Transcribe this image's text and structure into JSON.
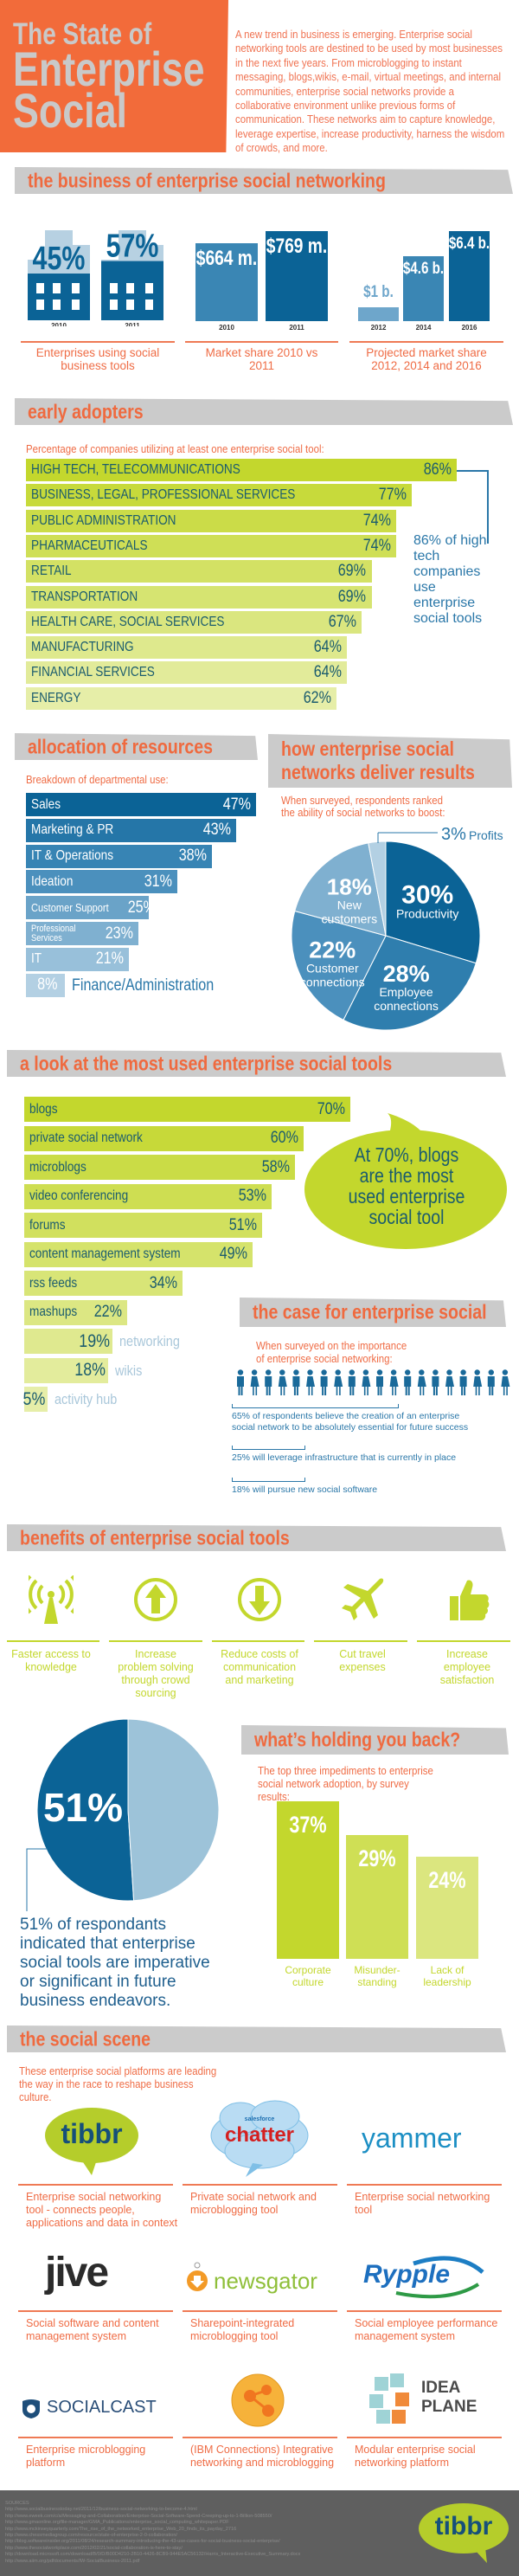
{
  "header": {
    "title_line1": "The State of",
    "title_line2": "Enterprise",
    "title_line3": "Social",
    "intro": "A new trend in business is emerging. Enterprise social networking tools are destined to be used by most businesses in the next five years. From microblogging to instant messaging, blogs,wikis, e-mail, virtual meetings, and internal communities, enterprise social networks provide a collaborative environment unlike previous forms of communication. These networks aim to capture knowledge, leverage expertise, increase productivity, harness the wisdom of crowds, and more."
  },
  "colors": {
    "accent_orange": "#f26b3a",
    "band_gray": "#cbcbcb",
    "dark_blue": "#0b6396",
    "mid_blue": "#3a86b4",
    "light_blue": "#9dc3d9",
    "green": "#c3d72d",
    "light_green": "#e6eea8",
    "footer_gray": "#5f5f5f"
  },
  "sections": {
    "business": {
      "title": "the business of enterprise social networking"
    },
    "early_adopters": {
      "title": "early adopters",
      "note": "86% of high tech companies use enterprise social tools"
    },
    "allocation": {
      "title": "allocation of resources"
    },
    "results": {
      "title": "how enterprise social networks deliver results"
    },
    "tools": {
      "title": "a look at the most used enterprise social tools",
      "callout": "At 70%, blogs are the most used enterprise social tool"
    },
    "case": {
      "title": "the case for enterprise social",
      "subtitle": "When surveyed on the importance of enterprise social networking:",
      "people_count": 20,
      "stats": [
        {
          "value": 65,
          "text": "65% of respondents believe the creation of an enterprise social network to be absolutely essential for future success"
        },
        {
          "value": 25,
          "text": "25% will leverage infrastructure that is currently in place"
        },
        {
          "value": 18,
          "text": "18% will pursue new social software"
        }
      ]
    },
    "benefits": {
      "title": "benefits of enterprise social tools",
      "items": [
        {
          "icon": "antenna-icon",
          "label": "Faster access to knowledge"
        },
        {
          "icon": "arrow-up-circle-icon",
          "label": "Increase problem solving through crowd sourcing"
        },
        {
          "icon": "arrow-down-circle-icon",
          "label": "Reduce costs of communication and marketing"
        },
        {
          "icon": "airplane-icon",
          "label": "Cut travel expenses"
        },
        {
          "icon": "thumbs-up-icon",
          "label": "Increase employee satisfaction"
        }
      ]
    },
    "imperative": {
      "text": "51% of respondants indicated that enterprise social tools are imperative or significant in future business endeavors."
    },
    "holding_back": {
      "title": "what’s holding you back?"
    },
    "social_scene": {
      "title": "the social scene",
      "subtitle": "These enterprise social platforms are leading the way in the race to reshape business culture.",
      "platforms": [
        {
          "logo": "tibbr",
          "description": "Enterprise social networking tool - connects people, applications and data in context"
        },
        {
          "logo": "chatter",
          "logo_sub": "salesforce",
          "description": "Private social network and microblogging tool"
        },
        {
          "logo": "yammer",
          "description": "Enterprise social networking tool"
        },
        {
          "logo": "jive",
          "description": "Social software and content management system"
        },
        {
          "logo": "newsgator",
          "description": "Sharepoint-integrated microblogging tool"
        },
        {
          "logo": "Rypple",
          "description": "Social employee performance management system"
        },
        {
          "logo": "SOCIALCAST",
          "description": "Enterprise microblogging platform"
        },
        {
          "logo": "IBM Connections",
          "description": "(IBM Connections) Integrative networking and microblogging"
        },
        {
          "logo": "IDEA PLANE",
          "description": "Modular enterprise social networking platform"
        }
      ]
    }
  },
  "sources": {
    "heading": "SOURCES",
    "urls": [
      "http://www.socialbusinesstoday.net/2011/12/business-social-networking-to-become-4.html",
      "http://www.eweek.com/c/a/Messaging-and-Collaboration/Enterprise-Social-Software-Spend-Creeping-up-to-1-Billion-508550/",
      "http://www.gmaonline.org/file-manager/GMA_Publications/enterprise_social_computing_whitepaper.PDF",
      "http://www.mckinseyquarterly.com/The_rise_of_the_networked_enterprise_Web_20_finds_its_payday_2716",
      "http://www.chessmediagroup.com/resource/state-of-enterprise-2-0-collaboration/",
      "http://blog.softwareinsider.org/2011/08/24/research-summary-introducing-the-43-use-cases-for-social-business-social-enterprise/",
      "http://www.thesocialworkplace.com/2012/02/21/social-collaboration-is-here-to-stay/",
      "http://download.microsoft.com/download/B/0/D/B00D4210-2B10-4426-8CB9-944E5AC56132/Harris_Interactive-Executive_Summary.docx",
      "http://www.aiim.org/pdfdocuments/IW-SocialBusiness-2011.pdf"
    ],
    "footer_logo": "tibbr"
  },
  "chart_data": [
    {
      "type": "bar",
      "title": "Enterprises using social business tools",
      "categories": [
        "2010",
        "2011"
      ],
      "values": [
        45,
        57
      ],
      "value_labels": [
        "45%",
        "57%"
      ],
      "colors": [
        "#0b6396",
        "#0b6396"
      ]
    },
    {
      "type": "bar",
      "title": "Market share 2010 vs 2011",
      "categories": [
        "2010",
        "2011"
      ],
      "values": [
        664,
        769
      ],
      "value_labels": [
        "$664 m.",
        "$769 m."
      ],
      "colors": [
        "#3a86b4",
        "#0b6396"
      ]
    },
    {
      "type": "bar",
      "title": "Projected market share 2012, 2014 and 2016",
      "categories": [
        "2012",
        "2014",
        "2016"
      ],
      "values": [
        1,
        4.6,
        6.4
      ],
      "value_labels": [
        "$1 b.",
        "$4.6 b.",
        "$6.4 b."
      ],
      "colors": [
        "#6ea6cb",
        "#3a86b4",
        "#0b6396"
      ]
    },
    {
      "type": "bar",
      "orientation": "horizontal",
      "title": "Percentage of companies utilizing at least one enterprise social tool:",
      "categories": [
        "HIGH TECH, TELECOMMUNICATIONS",
        "BUSINESS, LEGAL, PROFESSIONAL SERVICES",
        "PUBLIC ADMINISTRATION",
        "PHARMACEUTICALS",
        "RETAIL",
        "TRANSPORTATION",
        "HEALTH CARE, SOCIAL SERVICES",
        "MANUFACTURING",
        "FINANCIAL SERVICES",
        "ENERGY"
      ],
      "values": [
        86,
        77,
        74,
        74,
        69,
        69,
        67,
        64,
        64,
        62
      ],
      "unit": "%"
    },
    {
      "type": "bar",
      "orientation": "horizontal",
      "title": "Breakdown of departmental use:",
      "categories": [
        "Sales",
        "Marketing & PR",
        "IT & Operations",
        "Ideation",
        "Customer Support",
        "Professional Services",
        "IT",
        "Finance/Administration"
      ],
      "values": [
        47,
        43,
        38,
        31,
        25,
        23,
        21,
        8
      ],
      "unit": "%",
      "colors": [
        "#0b6396",
        "#2576a8",
        "#3784b4",
        "#4b90bd",
        "#6aa3c8",
        "#7fb0d0",
        "#98c0da",
        "#b3d0e3"
      ]
    },
    {
      "type": "pie",
      "title": "When surveyed, respondents ranked the ability of social networks to boost:",
      "slices": [
        {
          "label": "Productivity",
          "value": 30,
          "color": "#0b6396"
        },
        {
          "label": "Employee connections",
          "value": 28,
          "color": "#2f7eae"
        },
        {
          "label": "Customer connections",
          "value": 22,
          "color": "#4b90bd"
        },
        {
          "label": "New customers",
          "value": 18,
          "color": "#7fb0d0"
        },
        {
          "label": "Profits",
          "value": 3,
          "color": "#b3d0e3"
        }
      ],
      "unit": "%"
    },
    {
      "type": "bar",
      "orientation": "horizontal",
      "categories": [
        "blogs",
        "private social network",
        "microblogs",
        "video conferencing",
        "forums",
        "content management system",
        "rss feeds",
        "mashups",
        "networking",
        "wikis",
        "activity hub"
      ],
      "values": [
        70,
        60,
        58,
        53,
        51,
        49,
        34,
        22,
        19,
        18,
        5
      ],
      "unit": "%"
    },
    {
      "type": "pie",
      "slices": [
        {
          "label": "51%",
          "value": 51,
          "color": "#0b6396"
        },
        {
          "label": "",
          "value": 49,
          "color": "#9dc3d9"
        }
      ]
    },
    {
      "type": "bar",
      "title": "The top three impediments to enterprise social network adoption, by survey results:",
      "categories": [
        "Corporate culture",
        "Misunder-standing",
        "Lack of leadership"
      ],
      "values": [
        37,
        29,
        24
      ],
      "unit": "%",
      "colors": [
        "#c3d72d",
        "#cfdf55",
        "#dbe67f"
      ]
    }
  ]
}
